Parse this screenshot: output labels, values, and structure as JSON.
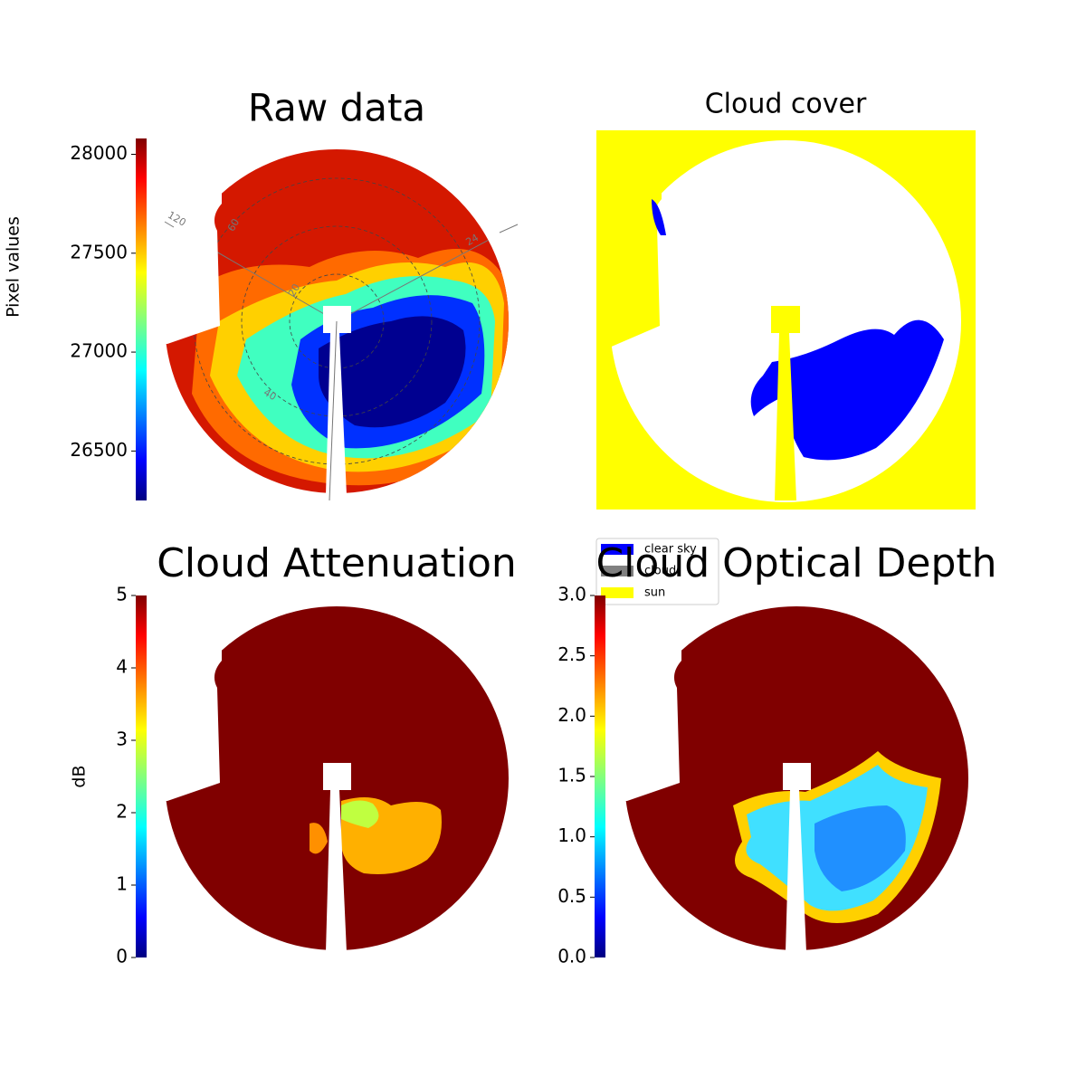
{
  "chart_data": [
    {
      "type": "heatmap",
      "title": "Raw data",
      "colorbar_label": "Pixel values",
      "clim": [
        26250,
        28080
      ],
      "cticks": [
        26500,
        27000,
        27500,
        28000
      ],
      "annotations": [
        "120",
        "60",
        "20",
        "40",
        "24"
      ]
    },
    {
      "type": "image",
      "title": "Cloud cover",
      "legend": [
        {
          "name": "clear sky",
          "color": "#0000ff"
        },
        {
          "name": "cloud",
          "color": "#808080"
        },
        {
          "name": "sun",
          "color": "#ffff00"
        }
      ]
    },
    {
      "type": "heatmap",
      "title": "Cloud Attenuation",
      "colorbar_label": "dB",
      "clim": [
        0,
        5
      ],
      "cticks": [
        0,
        1,
        2,
        3,
        4,
        5
      ]
    },
    {
      "type": "heatmap",
      "title": "Cloud Optical Depth",
      "clim": [
        0,
        3
      ],
      "cticks": [
        {
          "value": 0,
          "label": "0.0"
        },
        {
          "value": 0.5,
          "label": "0.5"
        },
        {
          "value": 1,
          "label": "1.0"
        },
        {
          "value": 1.5,
          "label": "1.5"
        },
        {
          "value": 2,
          "label": "2.0"
        },
        {
          "value": 2.5,
          "label": "2.5"
        },
        {
          "value": 3,
          "label": "3.0"
        }
      ]
    }
  ]
}
